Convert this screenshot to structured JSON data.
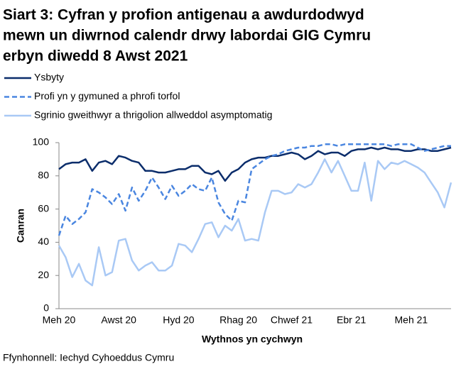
{
  "chart_data": {
    "type": "line",
    "title_lines": [
      "Siart 3: Cyfran y profion antigenau a awdurdodwyd",
      "mewn un diwrnod calendr drwy labordai GIG Cymru",
      "erbyn diwedd 8 Awst 2021"
    ],
    "y_label": "Canran",
    "x_label": "Wythnos yn cychwyn",
    "source": "Ffynhonnell: Iechyd Cyhoeddus Cymru",
    "categories": [
      "Meh 20",
      null,
      null,
      null,
      null,
      null,
      null,
      null,
      null,
      "Awst 20",
      null,
      null,
      null,
      null,
      null,
      null,
      null,
      null,
      "Hyd 20",
      null,
      null,
      null,
      null,
      null,
      null,
      null,
      null,
      "Rhag 20",
      null,
      null,
      null,
      null,
      null,
      null,
      null,
      "Chwef 21",
      null,
      null,
      null,
      null,
      null,
      null,
      null,
      null,
      "Ebr 21",
      null,
      null,
      null,
      null,
      null,
      null,
      null,
      null,
      "Meh 21",
      null,
      null,
      null,
      null,
      null,
      null
    ],
    "ylim": [
      0,
      100
    ],
    "yticks": [
      0,
      20,
      40,
      60,
      80,
      100
    ],
    "series": [
      {
        "name": "Ysbyty",
        "color": "#0b2d6b",
        "dashed": false,
        "values": [
          84,
          87,
          88,
          88,
          90,
          83,
          88,
          89,
          87,
          92,
          91,
          89,
          88,
          83,
          83,
          82,
          82,
          83,
          84,
          84,
          86,
          86,
          82,
          81,
          83,
          77,
          82,
          84,
          88,
          90,
          91,
          91,
          92,
          92,
          93,
          94,
          93,
          90,
          92,
          95,
          93,
          94,
          94,
          92,
          95,
          96,
          96,
          97,
          96,
          97,
          96,
          96,
          95,
          95,
          96,
          96,
          95,
          95,
          96,
          97
        ]
      },
      {
        "name": "Profi yn y gymuned a phrofi torfol",
        "color": "#4a86e0",
        "dashed": true,
        "values": [
          44,
          56,
          51,
          54,
          58,
          72,
          70,
          67,
          63,
          69,
          59,
          73,
          65,
          71,
          79,
          73,
          66,
          74,
          68,
          71,
          75,
          72,
          71,
          79,
          64,
          57,
          53,
          65,
          64,
          84,
          87,
          90,
          92,
          93,
          95,
          96,
          97,
          97,
          98,
          98,
          99,
          99,
          98,
          99,
          99,
          99,
          99,
          99,
          99,
          99,
          98,
          99,
          99,
          99,
          97,
          95,
          96,
          97,
          98,
          98
        ]
      },
      {
        "name": "Sgrinio gweithwyr a thrigolion allweddol asymptomatig",
        "color": "#a9c9f5",
        "dashed": false,
        "values": [
          38,
          31,
          19,
          27,
          17,
          14,
          37,
          20,
          22,
          41,
          42,
          29,
          23,
          26,
          28,
          23,
          23,
          26,
          39,
          38,
          34,
          42,
          51,
          52,
          43,
          50,
          47,
          54,
          41,
          42,
          41,
          58,
          71,
          71,
          69,
          70,
          75,
          73,
          75,
          82,
          90,
          82,
          89,
          80,
          71,
          71,
          88,
          65,
          89,
          84,
          88,
          87,
          89,
          87,
          85,
          82,
          76,
          70,
          61,
          76
        ]
      }
    ]
  }
}
